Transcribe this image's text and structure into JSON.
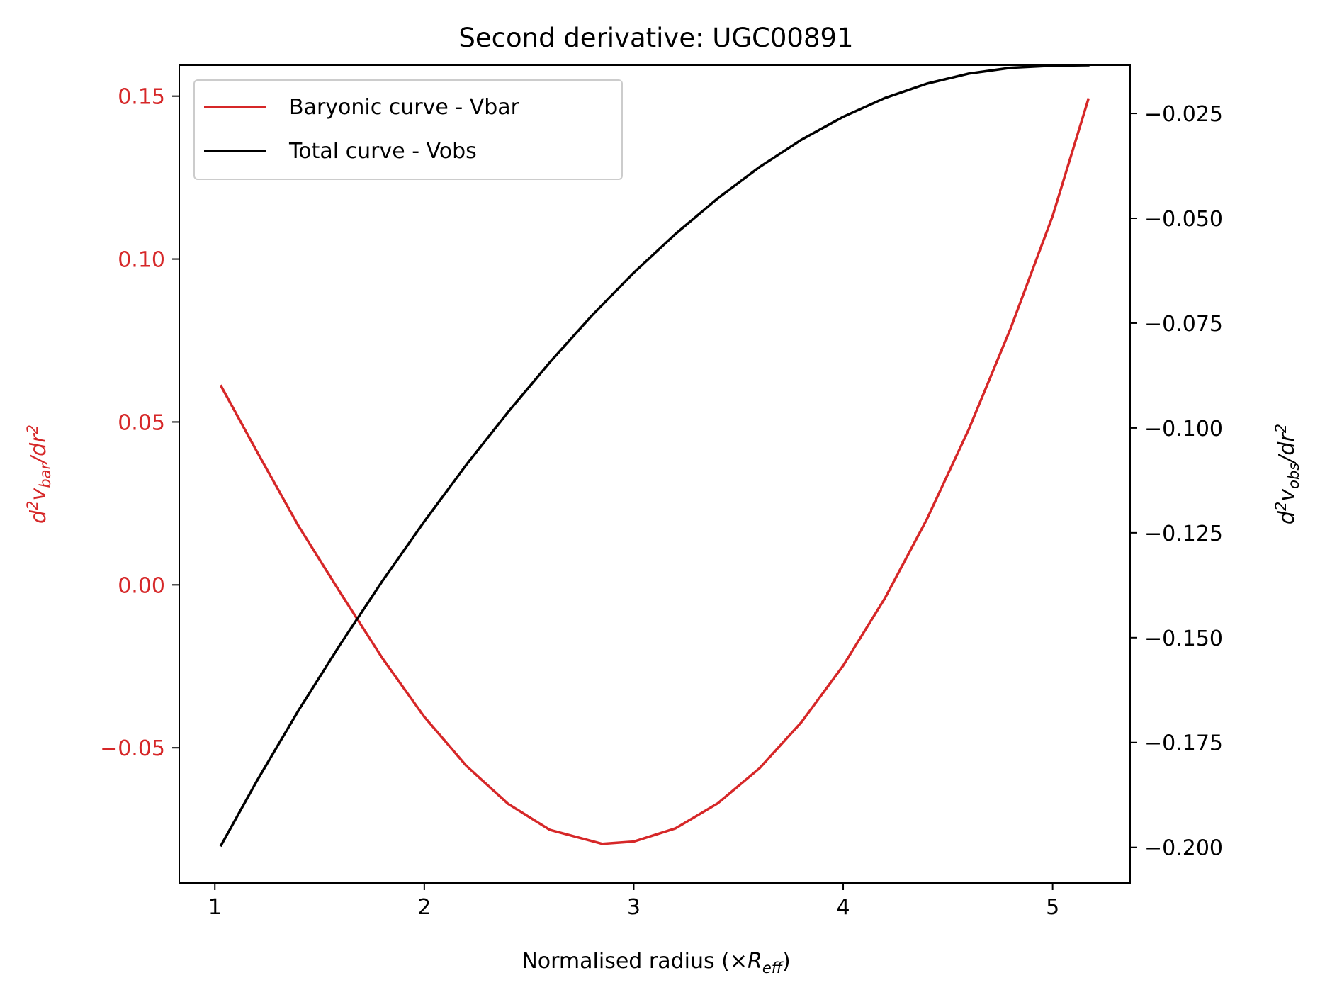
{
  "chart_data": {
    "type": "line",
    "title": "Second derivative: UGC00891",
    "xlabel": "Normalised radius (×R_eff)",
    "xlabel_parts": {
      "prefix": "Normalised radius (×",
      "symbol": "R",
      "subscript": "eff",
      "suffix": ")"
    },
    "ylabel_left": "d^2v_bar/dr^2",
    "ylabel_left_parts": {
      "d": "d",
      "sup": "2",
      "v": "v",
      "sub": "bar",
      "rest": "/dr",
      "sup2": "2"
    },
    "ylabel_right": "d^2v_obs/dr^2",
    "ylabel_right_parts": {
      "d": "d",
      "sup": "2",
      "v": "v",
      "sub": "obs",
      "rest": "/dr",
      "sup2": "2"
    },
    "xlim": [
      0.83,
      5.37
    ],
    "ylim_left": [
      -0.0915,
      0.1595
    ],
    "ylim_right": [
      -0.2085,
      -0.0135
    ],
    "xticks": [
      1,
      2,
      3,
      4,
      5
    ],
    "xtick_labels": [
      "1",
      "2",
      "3",
      "4",
      "5"
    ],
    "yticks_left": [
      -0.05,
      0.0,
      0.05,
      0.1,
      0.15
    ],
    "ytick_labels_left": [
      "−0.05",
      "0.00",
      "0.05",
      "0.10",
      "0.15"
    ],
    "yticks_right": [
      -0.2,
      -0.175,
      -0.15,
      -0.125,
      -0.1,
      -0.075,
      -0.05,
      -0.025
    ],
    "ytick_labels_right": [
      "−0.200",
      "−0.175",
      "−0.150",
      "−0.125",
      "−0.100",
      "−0.075",
      "−0.050",
      "−0.025"
    ],
    "grid": false,
    "legend_position": "upper-left",
    "series": [
      {
        "name": "Baryonic curve - Vbar",
        "axis": "left",
        "color": "#d62728",
        "x": [
          1.03,
          1.2,
          1.4,
          1.6,
          1.8,
          2.0,
          2.2,
          2.4,
          2.6,
          2.85,
          3.0,
          3.2,
          3.4,
          3.6,
          3.8,
          4.0,
          4.2,
          4.4,
          4.6,
          4.8,
          5.0,
          5.17
        ],
        "y": [
          0.061,
          0.041,
          0.018,
          -0.0025,
          -0.0225,
          -0.0405,
          -0.0555,
          -0.0672,
          -0.0752,
          -0.0795,
          -0.0788,
          -0.0747,
          -0.0671,
          -0.0563,
          -0.0422,
          -0.0248,
          -0.004,
          0.0202,
          0.0478,
          0.0788,
          0.1132,
          0.149
        ]
      },
      {
        "name": "Total curve - Vobs",
        "axis": "right",
        "color": "#000000",
        "x": [
          1.03,
          1.2,
          1.4,
          1.6,
          1.8,
          2.0,
          2.2,
          2.4,
          2.6,
          2.8,
          3.0,
          3.2,
          3.4,
          3.6,
          3.8,
          4.0,
          4.2,
          4.4,
          4.6,
          4.8,
          5.0,
          5.17
        ],
        "y": [
          -0.1995,
          -0.1842,
          -0.1673,
          -0.1515,
          -0.1365,
          -0.1223,
          -0.1088,
          -0.0962,
          -0.0843,
          -0.0732,
          -0.063,
          -0.0537,
          -0.0453,
          -0.0378,
          -0.0313,
          -0.0258,
          -0.0213,
          -0.0179,
          -0.0155,
          -0.0141,
          -0.0136,
          -0.0135
        ]
      }
    ]
  }
}
